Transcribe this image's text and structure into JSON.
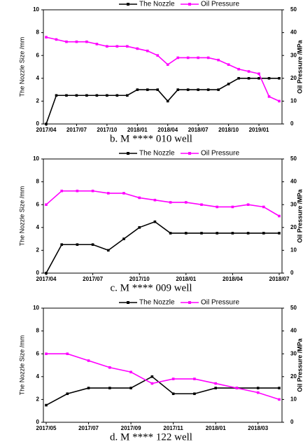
{
  "chart_data": [
    {
      "type": "line",
      "caption": "b. M **** 010 well",
      "ylabel": "The Nozzle Size /mm",
      "y2label": "Oil Pressure /MPa",
      "x": [
        "2017/04",
        null,
        null,
        "2017/07",
        null,
        null,
        "2017/10",
        null,
        null,
        "2018/01",
        null,
        null,
        "2018/04",
        null,
        null,
        "2018/07",
        null,
        null,
        "2018/10",
        null,
        null,
        "2019/01",
        null,
        null
      ],
      "ylim": [
        0,
        10
      ],
      "yticks": [
        0,
        2,
        4,
        6,
        8,
        10
      ],
      "y2lim": [
        0,
        50
      ],
      "y2ticks": [
        0,
        10,
        20,
        30,
        40,
        50
      ],
      "series": [
        {
          "name": "The Nozzle",
          "color": "#000000",
          "values": [
            0,
            2.5,
            2.5,
            2.5,
            2.5,
            2.5,
            2.5,
            2.5,
            2.5,
            3,
            3,
            3,
            2,
            3,
            3,
            3,
            3,
            3,
            3.5,
            4,
            4,
            4,
            4,
            4
          ]
        },
        {
          "name": "Oil Pressure",
          "color": "#ff00ff",
          "axis": "y2",
          "values": [
            38,
            37,
            36,
            36,
            36,
            35,
            34,
            34,
            34,
            33,
            32,
            30,
            26,
            29,
            29,
            29,
            29,
            28,
            26,
            24,
            23,
            22,
            12,
            10
          ]
        }
      ]
    },
    {
      "type": "line",
      "caption": "c. M **** 009 well",
      "ylabel": "The Nozzle Size /mm",
      "y2label": "Oil Pressure /MPa",
      "x": [
        "2017/04",
        null,
        null,
        "2017/07",
        null,
        null,
        "2017/10",
        null,
        null,
        "2018/01",
        null,
        null,
        "2018/04",
        null,
        null,
        "2018/07"
      ],
      "ylim": [
        0,
        10
      ],
      "yticks": [
        0,
        2,
        4,
        6,
        8,
        10
      ],
      "y2lim": [
        0,
        50
      ],
      "y2ticks": [
        0,
        10,
        20,
        30,
        40,
        50
      ],
      "series": [
        {
          "name": "The Nozzle",
          "color": "#000000",
          "values": [
            0,
            2.5,
            2.5,
            2.5,
            2,
            3,
            4,
            4.5,
            3.5,
            3.5,
            3.5,
            3.5,
            3.5,
            3.5,
            3.5,
            3.5
          ]
        },
        {
          "name": "Oil Pressure",
          "color": "#ff00ff",
          "axis": "y2",
          "values": [
            30,
            36,
            36,
            36,
            35,
            35,
            33,
            32,
            31,
            31,
            30,
            29,
            29,
            30,
            29,
            25
          ]
        }
      ]
    },
    {
      "type": "line",
      "caption": "d. M **** 122 well",
      "ylabel": "The Nozzle Size /mm",
      "y2label": "Oil Pressure /MPa",
      "x": [
        "2017/05",
        null,
        "2017/07",
        null,
        "2017/09",
        null,
        "2017/11",
        null,
        "2018/01",
        null,
        "2018/03",
        null
      ],
      "ylim": [
        0,
        10
      ],
      "yticks": [
        0,
        2,
        4,
        6,
        8,
        10
      ],
      "y2lim": [
        0,
        50
      ],
      "y2ticks": [
        0,
        10,
        20,
        30,
        40,
        50
      ],
      "series": [
        {
          "name": "The Nozzle",
          "color": "#000000",
          "values": [
            1.5,
            2.5,
            3,
            3,
            3,
            4,
            2.5,
            2.5,
            3,
            3,
            3,
            3
          ]
        },
        {
          "name": "Oil Pressure",
          "color": "#ff00ff",
          "axis": "y2",
          "values": [
            30,
            30,
            27,
            24,
            22,
            17,
            19,
            19,
            17,
            15,
            13,
            10
          ]
        }
      ]
    }
  ]
}
